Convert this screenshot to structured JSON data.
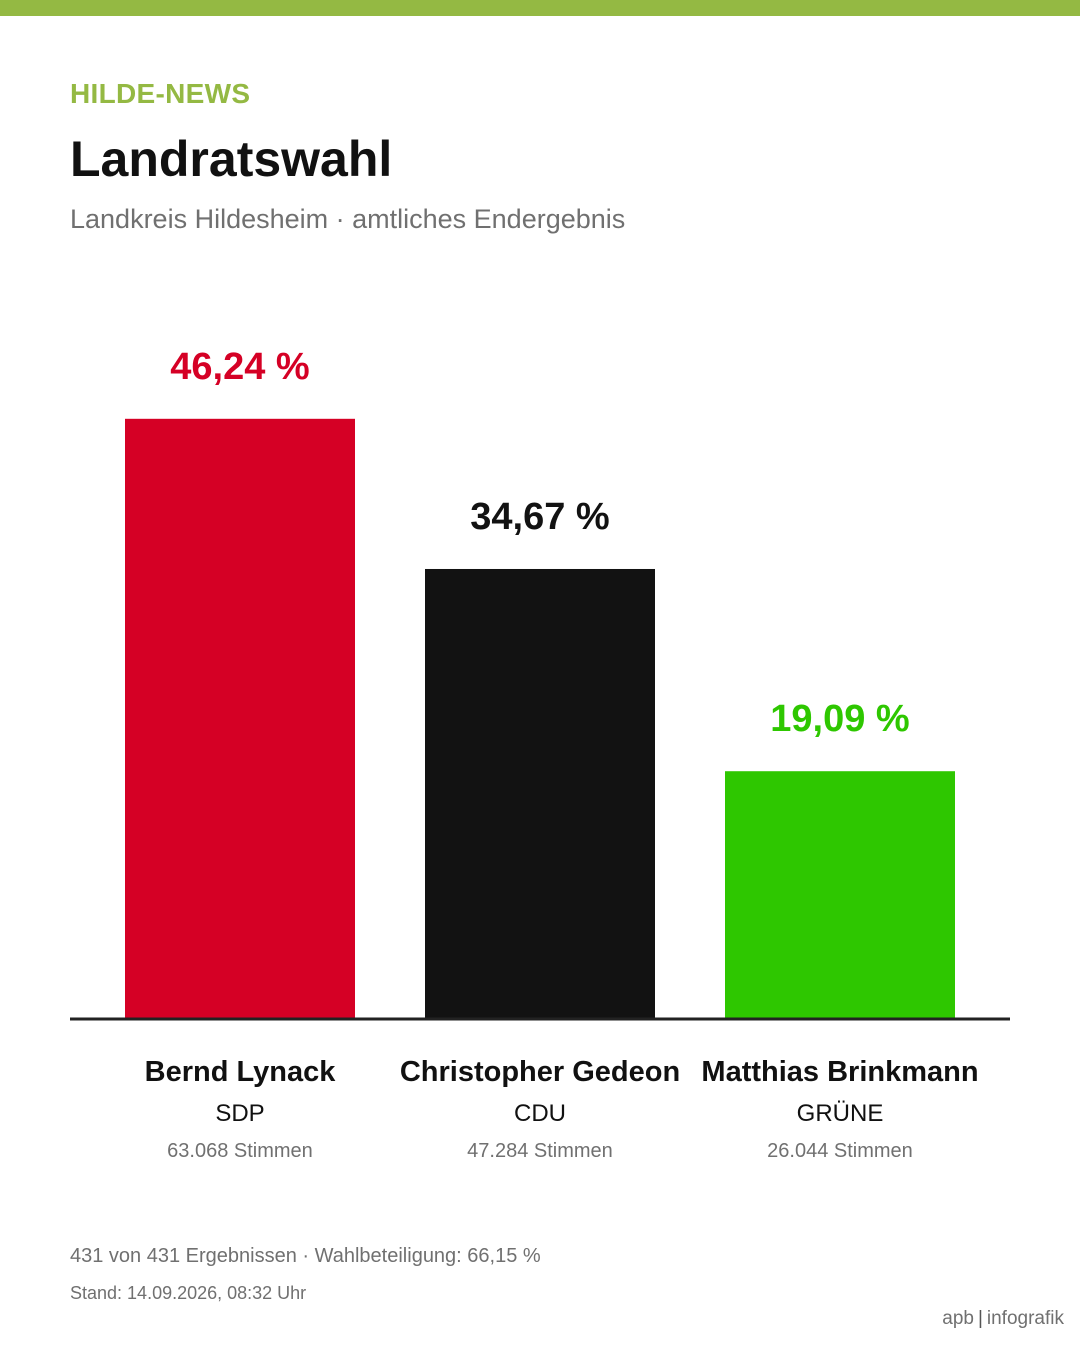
{
  "header": {
    "brand": "HILDE-NEWS",
    "title": "Landratswahl",
    "subtitle": "Landkreis Hildesheim · amtliches Endergebnis"
  },
  "colors": {
    "accent": "#94b943",
    "sdp": "#d50025",
    "cdu": "#121212",
    "gruene": "#2ec700"
  },
  "chart_data": {
    "type": "bar",
    "unit": "%",
    "ylim": [
      0,
      50
    ],
    "grid": false,
    "legend": "none",
    "categories": [
      "Bernd Lynack",
      "Christopher Gedeon",
      "Matthias Brinkmann"
    ],
    "bars": [
      {
        "candidate": "Bernd Lynack",
        "party": "SDP",
        "value": 46.24,
        "value_label": "46,24 %",
        "votes_label": "63.068 Stimmen",
        "color": "#d50025"
      },
      {
        "candidate": "Christopher Gedeon",
        "party": "CDU",
        "value": 34.67,
        "value_label": "34,67 %",
        "votes_label": "47.284 Stimmen",
        "color": "#121212"
      },
      {
        "candidate": "Matthias Brinkmann",
        "party": "GRÜNE",
        "value": 19.09,
        "value_label": "19,09 %",
        "votes_label": "26.044 Stimmen",
        "color": "#2ec700"
      }
    ]
  },
  "footer": {
    "results": "431 von 431 Ergebnissen · Wahlbeteiligung: 66,15 %",
    "timestamp": "Stand: 14.09.2026, 08:32 Uhr",
    "credit_left": "apb",
    "credit_separator": "|",
    "credit_right": "infografik"
  }
}
